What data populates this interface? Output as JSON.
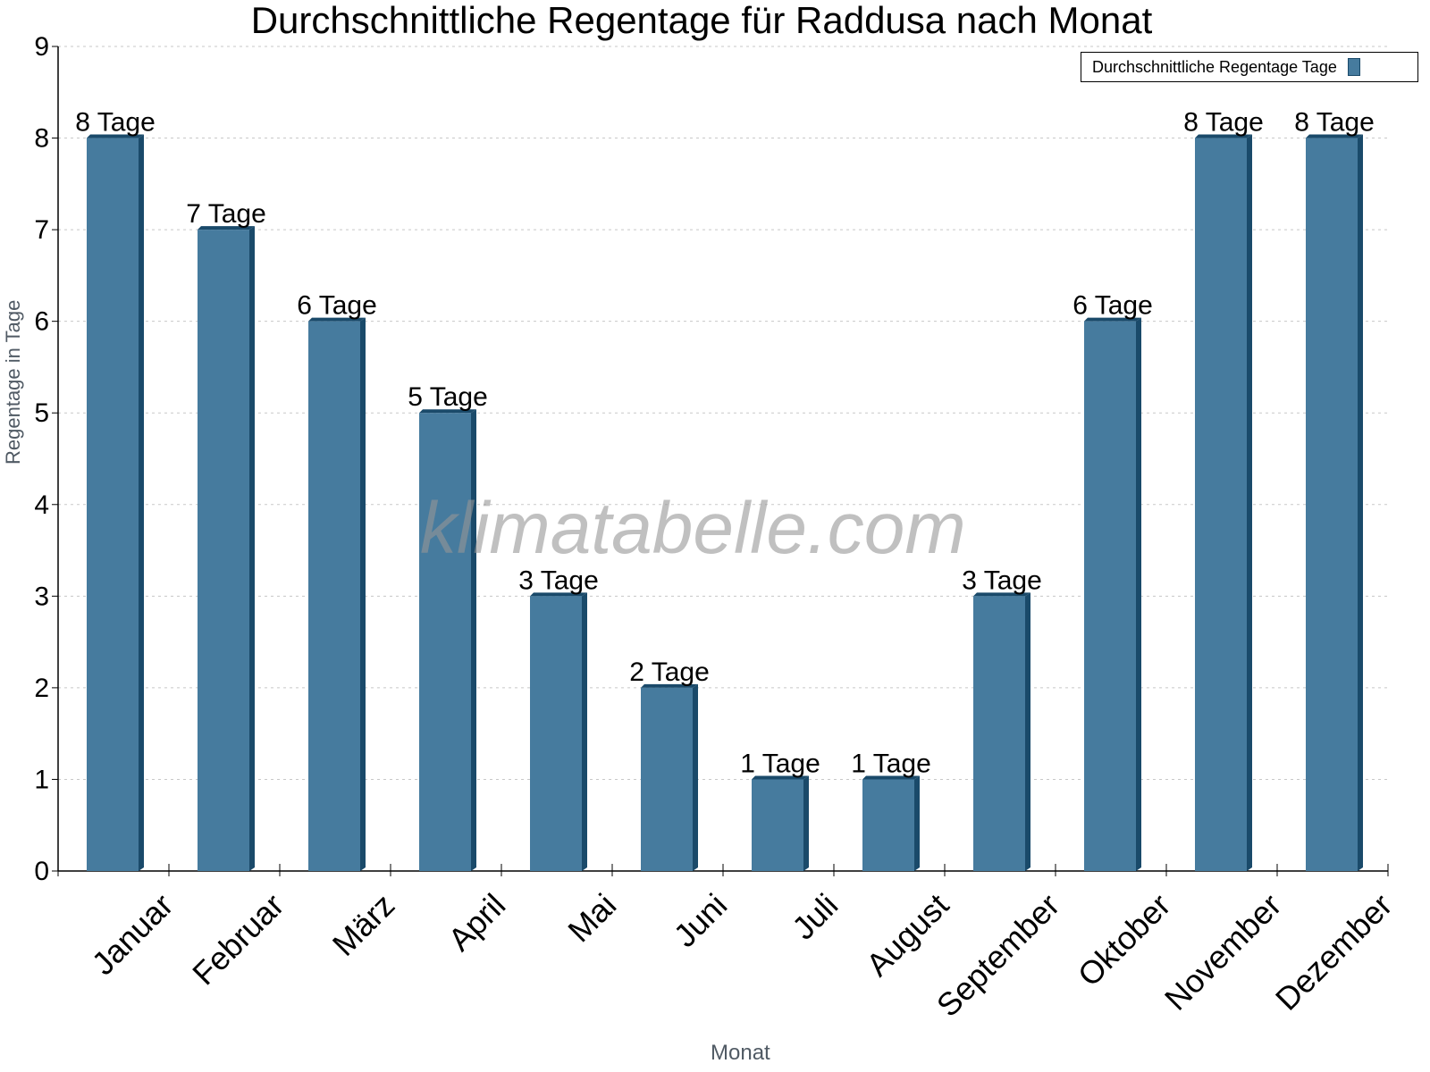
{
  "chart_data": {
    "type": "bar",
    "title": "Durchschnittliche Regentage für Raddusa nach Monat",
    "xlabel": "Monat",
    "ylabel": "Regentage in Tage",
    "categories": [
      "Januar",
      "Februar",
      "März",
      "April",
      "Mai",
      "Juni",
      "Juli",
      "August",
      "September",
      "Oktober",
      "November",
      "Dezember"
    ],
    "series": [
      {
        "name": "Durchschnittliche Regentage Tage",
        "values": [
          8,
          7,
          6,
          5,
          3,
          2,
          1,
          1,
          3,
          6,
          8,
          8
        ],
        "color": "#467b9e"
      }
    ],
    "data_labels": [
      "8 Tage",
      "7 Tage",
      "6 Tage",
      "5 Tage",
      "3 Tage",
      "2 Tage",
      "1 Tage",
      "1 Tage",
      "3 Tage",
      "6 Tage",
      "8 Tage",
      "8 Tage"
    ],
    "ylim": [
      0,
      9
    ],
    "yticks": [
      0,
      1,
      2,
      3,
      4,
      5,
      6,
      7,
      8,
      9
    ],
    "grid": true,
    "legend_position": "top-right"
  },
  "watermark": "klimatabelle.com"
}
